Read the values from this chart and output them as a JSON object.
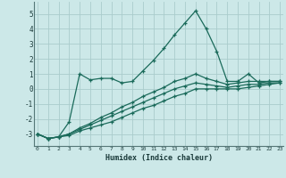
{
  "xlabel": "Humidex (Indice chaleur)",
  "bg_color": "#cce8e8",
  "grid_color": "#aacccc",
  "line_color": "#1a6a5a",
  "x_values": [
    0,
    1,
    2,
    3,
    4,
    5,
    6,
    7,
    8,
    9,
    10,
    11,
    12,
    13,
    14,
    15,
    16,
    17,
    18,
    19,
    20,
    21,
    22,
    23
  ],
  "series1": [
    -3.0,
    -3.3,
    -3.2,
    -2.2,
    1.0,
    0.6,
    0.7,
    0.7,
    0.4,
    0.5,
    1.2,
    1.9,
    2.7,
    3.6,
    4.4,
    5.2,
    4.0,
    2.5,
    0.5,
    0.5,
    1.0,
    0.4,
    0.5,
    0.5
  ],
  "series2": [
    -3.0,
    -3.3,
    -3.2,
    -3.1,
    -2.8,
    -2.6,
    -2.4,
    -2.2,
    -1.9,
    -1.6,
    -1.3,
    -1.1,
    -0.8,
    -0.5,
    -0.3,
    0.0,
    0.0,
    0.0,
    0.0,
    0.0,
    0.1,
    0.2,
    0.3,
    0.4
  ],
  "series3": [
    -3.0,
    -3.3,
    -3.2,
    -3.0,
    -2.7,
    -2.4,
    -2.1,
    -1.8,
    -1.5,
    -1.2,
    -0.9,
    -0.6,
    -0.3,
    0.0,
    0.2,
    0.4,
    0.3,
    0.2,
    0.1,
    0.2,
    0.3,
    0.3,
    0.4,
    0.4
  ],
  "series4": [
    -3.0,
    -3.3,
    -3.2,
    -3.0,
    -2.6,
    -2.3,
    -1.9,
    -1.6,
    -1.2,
    -0.9,
    -0.5,
    -0.2,
    0.1,
    0.5,
    0.7,
    1.0,
    0.7,
    0.5,
    0.3,
    0.4,
    0.5,
    0.5,
    0.5,
    0.5
  ],
  "ylim": [
    -3.8,
    5.8
  ],
  "yticks": [
    -3,
    -2,
    -1,
    0,
    1,
    2,
    3,
    4,
    5
  ],
  "xlim": [
    -0.3,
    23.3
  ]
}
